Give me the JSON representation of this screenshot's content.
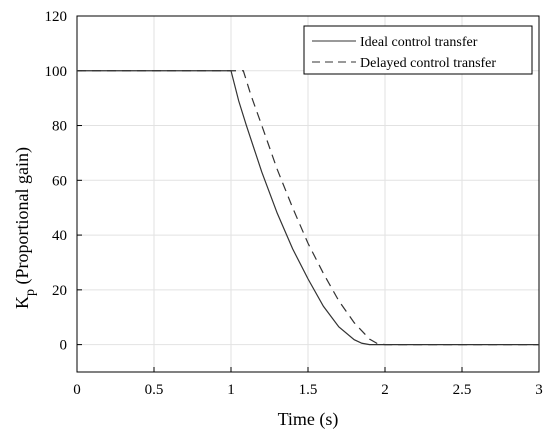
{
  "chart_data": {
    "type": "line",
    "xlabel": "Time (s)",
    "ylabel_main": "K",
    "ylabel_sub": "p",
    "ylabel_rest": " (Proportional gain)",
    "xlim": [
      0,
      3
    ],
    "ylim": [
      -10,
      120
    ],
    "x_ticks": [
      0,
      0.5,
      1,
      1.5,
      2,
      2.5,
      3
    ],
    "x_tick_labels": [
      "0",
      "0.5",
      "1",
      "1.5",
      "2",
      "2.5",
      "3"
    ],
    "y_ticks": [
      0,
      20,
      40,
      60,
      80,
      100,
      120
    ],
    "y_tick_labels": [
      "0",
      "20",
      "40",
      "60",
      "80",
      "100",
      "120"
    ],
    "grid": true,
    "legend_position": "top-right",
    "series": [
      {
        "name": "Ideal control transfer",
        "style": "solid",
        "color": "#333333",
        "x": [
          0,
          1.0,
          1.05,
          1.1,
          1.2,
          1.3,
          1.4,
          1.5,
          1.6,
          1.7,
          1.8,
          1.85,
          1.9,
          2.0,
          2.5,
          3.0
        ],
        "y": [
          100,
          100,
          89,
          80,
          63,
          48,
          35,
          24,
          14,
          6.5,
          1.8,
          0.5,
          0,
          0,
          0,
          0
        ]
      },
      {
        "name": "Delayed control transfer",
        "style": "dashed",
        "color": "#333333",
        "x": [
          0,
          1.08,
          1.13,
          1.2,
          1.3,
          1.4,
          1.5,
          1.6,
          1.7,
          1.8,
          1.9,
          1.95,
          2.0,
          2.5,
          3.0
        ],
        "y": [
          100,
          100,
          91,
          80,
          64,
          50,
          37,
          26,
          16,
          8,
          2,
          0.4,
          0,
          0,
          0
        ]
      }
    ]
  }
}
